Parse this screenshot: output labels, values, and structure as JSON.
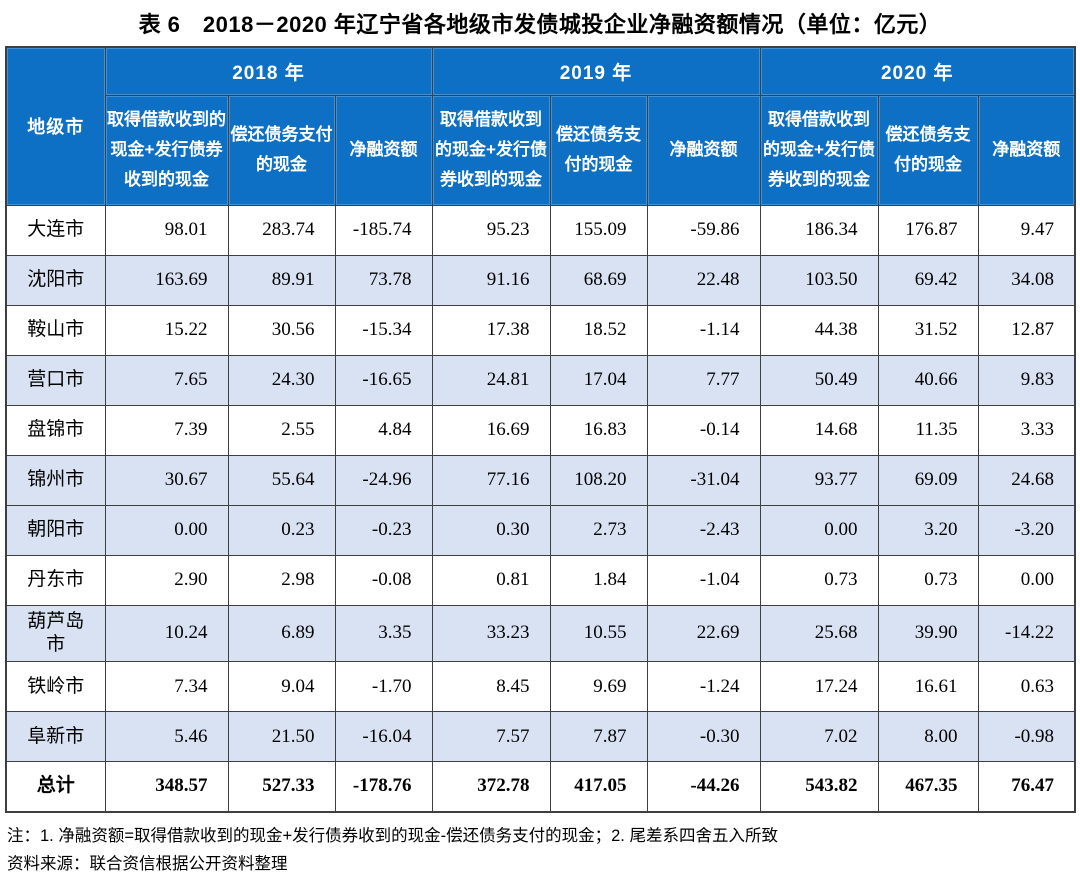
{
  "title": "表 6　2018－2020 年辽宁省各地级市发债城投企业净融资额情况（单位：亿元）",
  "colors": {
    "header_bg": "#0E70C4",
    "row_shaded": "#D9E2F3",
    "border": "#3F3F3F"
  },
  "table": {
    "city_header": "地级市",
    "year_groups": [
      {
        "label": "2018 年",
        "columns": [
          "取得借款收到的现金+发行债券收到的现金",
          "偿还债务支付的现金",
          "净融资额"
        ]
      },
      {
        "label": "2019 年",
        "columns": [
          "取得借款收到的现金+发行债券收到的现金",
          "偿还债务支付的现金",
          "净融资额"
        ]
      },
      {
        "label": "2020 年",
        "columns": [
          "取得借款收到的现金+发行债券收到的现金",
          "偿还债务支付的现金",
          "净融资额"
        ]
      }
    ],
    "rows": [
      {
        "city": "大连市",
        "shaded": false,
        "total": false,
        "values": [
          "98.01",
          "283.74",
          "-185.74",
          "95.23",
          "155.09",
          "-59.86",
          "186.34",
          "176.87",
          "9.47"
        ]
      },
      {
        "city": "沈阳市",
        "shaded": true,
        "total": false,
        "values": [
          "163.69",
          "89.91",
          "73.78",
          "91.16",
          "68.69",
          "22.48",
          "103.50",
          "69.42",
          "34.08"
        ]
      },
      {
        "city": "鞍山市",
        "shaded": false,
        "total": false,
        "values": [
          "15.22",
          "30.56",
          "-15.34",
          "17.38",
          "18.52",
          "-1.14",
          "44.38",
          "31.52",
          "12.87"
        ]
      },
      {
        "city": "营口市",
        "shaded": true,
        "total": false,
        "values": [
          "7.65",
          "24.30",
          "-16.65",
          "24.81",
          "17.04",
          "7.77",
          "50.49",
          "40.66",
          "9.83"
        ]
      },
      {
        "city": "盘锦市",
        "shaded": false,
        "total": false,
        "values": [
          "7.39",
          "2.55",
          "4.84",
          "16.69",
          "16.83",
          "-0.14",
          "14.68",
          "11.35",
          "3.33"
        ]
      },
      {
        "city": "锦州市",
        "shaded": true,
        "total": false,
        "values": [
          "30.67",
          "55.64",
          "-24.96",
          "77.16",
          "108.20",
          "-31.04",
          "93.77",
          "69.09",
          "24.68"
        ]
      },
      {
        "city": "朝阳市",
        "shaded": true,
        "total": false,
        "values": [
          "0.00",
          "0.23",
          "-0.23",
          "0.30",
          "2.73",
          "-2.43",
          "0.00",
          "3.20",
          "-3.20"
        ]
      },
      {
        "city": "丹东市",
        "shaded": false,
        "total": false,
        "values": [
          "2.90",
          "2.98",
          "-0.08",
          "0.81",
          "1.84",
          "-1.04",
          "0.73",
          "0.73",
          "0.00"
        ]
      },
      {
        "city": "葫芦岛市",
        "shaded": true,
        "total": false,
        "values": [
          "10.24",
          "6.89",
          "3.35",
          "33.23",
          "10.55",
          "22.69",
          "25.68",
          "39.90",
          "-14.22"
        ]
      },
      {
        "city": "铁岭市",
        "shaded": false,
        "total": false,
        "values": [
          "7.34",
          "9.04",
          "-1.70",
          "8.45",
          "9.69",
          "-1.24",
          "17.24",
          "16.61",
          "0.63"
        ]
      },
      {
        "city": "阜新市",
        "shaded": true,
        "total": false,
        "values": [
          "5.46",
          "21.50",
          "-16.04",
          "7.57",
          "7.87",
          "-0.30",
          "7.02",
          "8.00",
          "-0.98"
        ]
      },
      {
        "city": "总计",
        "shaded": false,
        "total": true,
        "values": [
          "348.57",
          "527.33",
          "-178.76",
          "372.78",
          "417.05",
          "-44.26",
          "543.82",
          "467.35",
          "76.47"
        ]
      }
    ]
  },
  "notes": [
    "注：1. 净融资额=取得借款收到的现金+发行债券收到的现金-偿还债务支付的现金；2. 尾差系四舍五入所致",
    "资料来源：联合资信根据公开资料整理"
  ]
}
